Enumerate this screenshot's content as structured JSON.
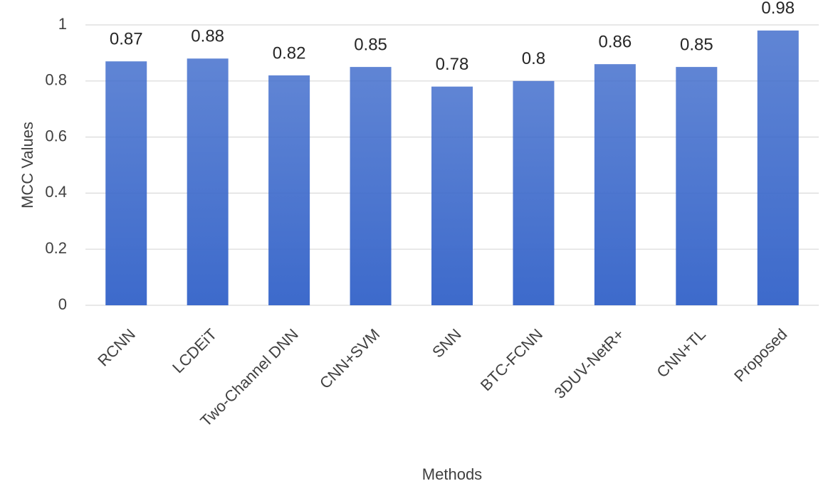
{
  "chart_data": {
    "type": "bar",
    "x_label": "Methods",
    "y_label": "MCC Values",
    "categories": [
      "RCNN",
      "LCDEiT",
      "Two-Channel DNN",
      "CNN+SVM",
      "SNN",
      "BTC-FCNN",
      "3DUV-NetR+",
      "CNN+TL",
      "Proposed"
    ],
    "values": [
      0.87,
      0.88,
      0.82,
      0.85,
      0.78,
      0.8,
      0.86,
      0.85,
      0.98
    ],
    "color": "#3d6acb",
    "ylim": [
      0,
      1
    ],
    "yticks": [
      0,
      0.2,
      0.4,
      0.6,
      0.8,
      1
    ],
    "grid": true
  }
}
